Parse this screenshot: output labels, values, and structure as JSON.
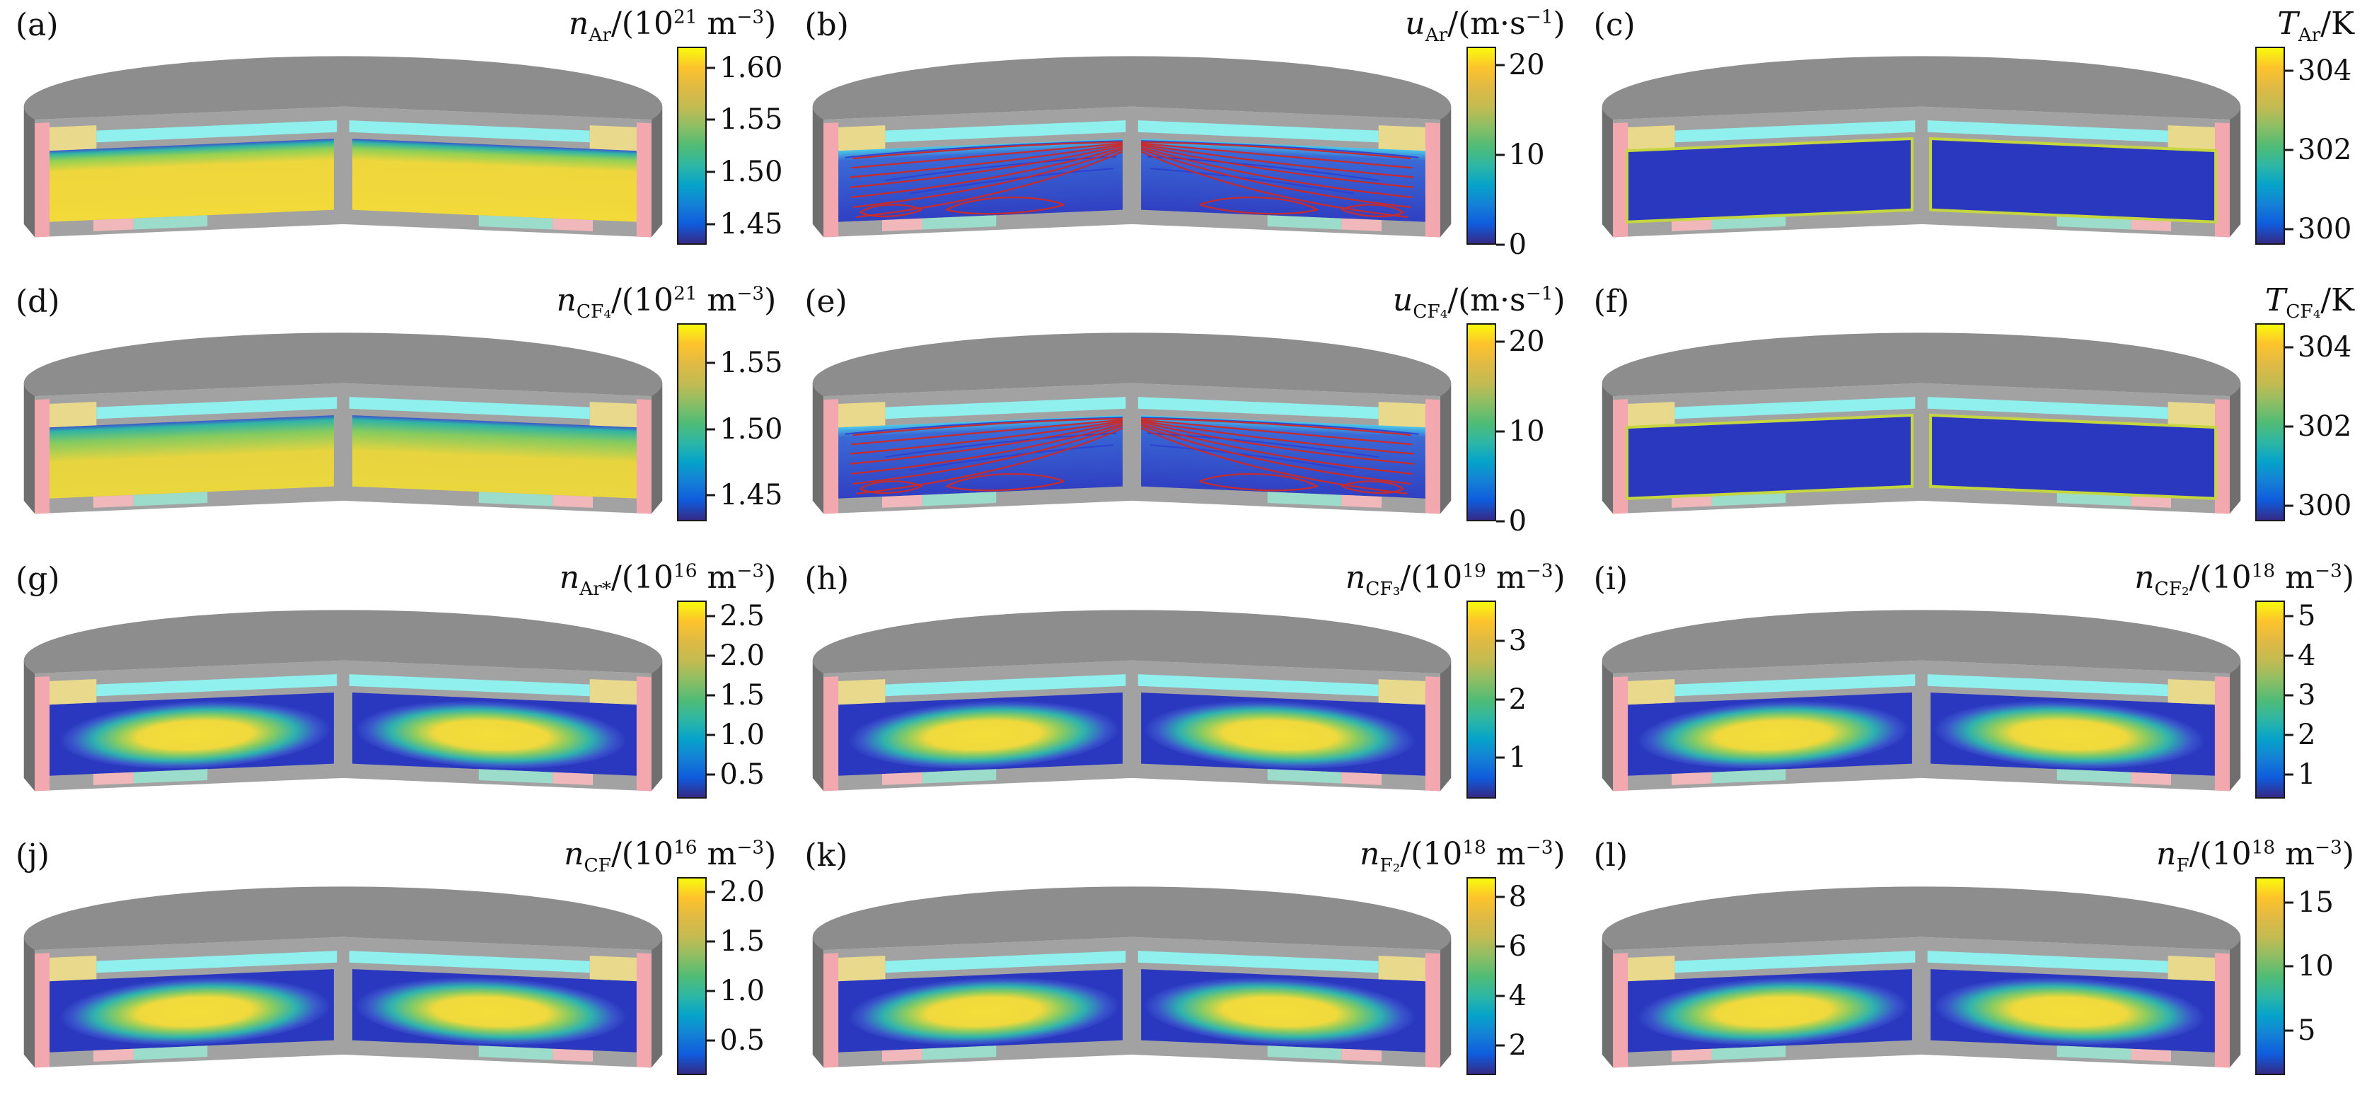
{
  "figure": {
    "background": "#ffffff",
    "colormap": [
      "#352a87",
      "#0f5cdd",
      "#1481d6",
      "#06a4ca",
      "#2eb7a4",
      "#51bc74",
      "#8dbe64",
      "#c4bb51",
      "#e0ba44",
      "#fdc32c",
      "#f8fa0d"
    ],
    "palette": {
      "chamber_gray": "#8d8d8d",
      "cut_face_gray": "#a2a2a2",
      "side_wall_gray": "#6f6f6f",
      "inlet_cyan": "#8ff0ee",
      "window_yellow": "#e9d98c",
      "wall_pink": "#f2a8ae",
      "stage_teal": "#9cdcca",
      "stage_pink": "#f0b8ba",
      "plasma_blue": "#2a38c0",
      "streamline_red": "#c92a2a",
      "streamline_blue": "#2b3fd0",
      "contour_yellow": "#c6d63e"
    },
    "panels": [
      {
        "id": "a",
        "label": "(a)",
        "face_style": "warm",
        "title_parts": [
          {
            "s": "i",
            "t": "n"
          },
          {
            "s": "sub",
            "t": "Ar"
          },
          {
            "s": "n",
            "t": "/(10"
          },
          {
            "s": "sup",
            "t": "21"
          },
          {
            "s": "n",
            "t": " m"
          },
          {
            "s": "sup",
            "t": "−3"
          },
          {
            "s": "n",
            "t": ")"
          }
        ],
        "colorbar": {
          "min": 1.43,
          "max": 1.62,
          "ticks": [
            {
              "v": 1.6,
              "t": "1.60"
            },
            {
              "v": 1.55,
              "t": "1.55"
            },
            {
              "v": 1.5,
              "t": "1.50"
            },
            {
              "v": 1.45,
              "t": "1.45"
            }
          ]
        }
      },
      {
        "id": "b",
        "label": "(b)",
        "face_style": "flow",
        "title_parts": [
          {
            "s": "i",
            "t": "u"
          },
          {
            "s": "sub",
            "t": "Ar"
          },
          {
            "s": "n",
            "t": "/(m·s"
          },
          {
            "s": "sup",
            "t": "−1"
          },
          {
            "s": "n",
            "t": ")"
          }
        ],
        "colorbar": {
          "min": 0,
          "max": 22,
          "ticks": [
            {
              "v": 20,
              "t": "20"
            },
            {
              "v": 10,
              "t": "10"
            },
            {
              "v": 0,
              "t": "0"
            }
          ]
        }
      },
      {
        "id": "c",
        "label": "(c)",
        "face_style": "cool",
        "title_parts": [
          {
            "s": "i",
            "t": "T"
          },
          {
            "s": "sub",
            "t": "Ar"
          },
          {
            "s": "n",
            "t": "/K"
          }
        ],
        "colorbar": {
          "min": 299.6,
          "max": 304.6,
          "ticks": [
            {
              "v": 304,
              "t": "304"
            },
            {
              "v": 302,
              "t": "302"
            },
            {
              "v": 300,
              "t": "300"
            }
          ]
        }
      },
      {
        "id": "d",
        "label": "(d)",
        "face_style": "warm2",
        "title_parts": [
          {
            "s": "i",
            "t": "n"
          },
          {
            "s": "sub",
            "t": "CF₄"
          },
          {
            "s": "n",
            "t": "/(10"
          },
          {
            "s": "sup",
            "t": "21"
          },
          {
            "s": "n",
            "t": " m"
          },
          {
            "s": "sup",
            "t": "−3"
          },
          {
            "s": "n",
            "t": ")"
          }
        ],
        "colorbar": {
          "min": 1.43,
          "max": 1.58,
          "ticks": [
            {
              "v": 1.55,
              "t": "1.55"
            },
            {
              "v": 1.5,
              "t": "1.50"
            },
            {
              "v": 1.45,
              "t": "1.45"
            }
          ]
        }
      },
      {
        "id": "e",
        "label": "(e)",
        "face_style": "flow",
        "title_parts": [
          {
            "s": "i",
            "t": "u"
          },
          {
            "s": "sub",
            "t": "CF₄"
          },
          {
            "s": "n",
            "t": "/(m·s"
          },
          {
            "s": "sup",
            "t": "−1"
          },
          {
            "s": "n",
            "t": ")"
          }
        ],
        "colorbar": {
          "min": 0,
          "max": 22,
          "ticks": [
            {
              "v": 20,
              "t": "20"
            },
            {
              "v": 10,
              "t": "10"
            },
            {
              "v": 0,
              "t": "0"
            }
          ]
        }
      },
      {
        "id": "f",
        "label": "(f)",
        "face_style": "cool",
        "title_parts": [
          {
            "s": "i",
            "t": "T"
          },
          {
            "s": "sub",
            "t": "CF₄"
          },
          {
            "s": "n",
            "t": "/K"
          }
        ],
        "colorbar": {
          "min": 299.6,
          "max": 304.6,
          "ticks": [
            {
              "v": 304,
              "t": "304"
            },
            {
              "v": 302,
              "t": "302"
            },
            {
              "v": 300,
              "t": "300"
            }
          ]
        }
      },
      {
        "id": "g",
        "label": "(g)",
        "face_style": "ring",
        "title_parts": [
          {
            "s": "i",
            "t": "n"
          },
          {
            "s": "sub",
            "t": "Ar*"
          },
          {
            "s": "n",
            "t": "/(10"
          },
          {
            "s": "sup",
            "t": "16"
          },
          {
            "s": "n",
            "t": " m"
          },
          {
            "s": "sup",
            "t": "−3"
          },
          {
            "s": "n",
            "t": ")"
          }
        ],
        "colorbar": {
          "min": 0.2,
          "max": 2.7,
          "ticks": [
            {
              "v": 2.5,
              "t": "2.5"
            },
            {
              "v": 2.0,
              "t": "2.0"
            },
            {
              "v": 1.5,
              "t": "1.5"
            },
            {
              "v": 1.0,
              "t": "1.0"
            },
            {
              "v": 0.5,
              "t": "0.5"
            }
          ]
        }
      },
      {
        "id": "h",
        "label": "(h)",
        "face_style": "ring",
        "title_parts": [
          {
            "s": "i",
            "t": "n"
          },
          {
            "s": "sub",
            "t": "CF₃"
          },
          {
            "s": "n",
            "t": "/(10"
          },
          {
            "s": "sup",
            "t": "19"
          },
          {
            "s": "n",
            "t": " m"
          },
          {
            "s": "sup",
            "t": "−3"
          },
          {
            "s": "n",
            "t": ")"
          }
        ],
        "colorbar": {
          "min": 0.3,
          "max": 3.7,
          "ticks": [
            {
              "v": 3,
              "t": "3"
            },
            {
              "v": 2,
              "t": "2"
            },
            {
              "v": 1,
              "t": "1"
            }
          ]
        }
      },
      {
        "id": "i",
        "label": "(i)",
        "face_style": "ring",
        "title_parts": [
          {
            "s": "i",
            "t": "n"
          },
          {
            "s": "sub",
            "t": "CF₂"
          },
          {
            "s": "n",
            "t": "/(10"
          },
          {
            "s": "sup",
            "t": "18"
          },
          {
            "s": "n",
            "t": " m"
          },
          {
            "s": "sup",
            "t": "−3"
          },
          {
            "s": "n",
            "t": ")"
          }
        ],
        "colorbar": {
          "min": 0.4,
          "max": 5.4,
          "ticks": [
            {
              "v": 5,
              "t": "5"
            },
            {
              "v": 4,
              "t": "4"
            },
            {
              "v": 3,
              "t": "3"
            },
            {
              "v": 2,
              "t": "2"
            },
            {
              "v": 1,
              "t": "1"
            }
          ]
        }
      },
      {
        "id": "j",
        "label": "(j)",
        "face_style": "ring",
        "title_parts": [
          {
            "s": "i",
            "t": "n"
          },
          {
            "s": "sub",
            "t": "CF"
          },
          {
            "s": "n",
            "t": "/(10"
          },
          {
            "s": "sup",
            "t": "16"
          },
          {
            "s": "n",
            "t": " m"
          },
          {
            "s": "sup",
            "t": "−3"
          },
          {
            "s": "n",
            "t": ")"
          }
        ],
        "colorbar": {
          "min": 0.15,
          "max": 2.15,
          "ticks": [
            {
              "v": 2.0,
              "t": "2.0"
            },
            {
              "v": 1.5,
              "t": "1.5"
            },
            {
              "v": 1.0,
              "t": "1.0"
            },
            {
              "v": 0.5,
              "t": "0.5"
            }
          ]
        }
      },
      {
        "id": "k",
        "label": "(k)",
        "face_style": "ring",
        "title_parts": [
          {
            "s": "i",
            "t": "n"
          },
          {
            "s": "sub",
            "t": "F₂"
          },
          {
            "s": "n",
            "t": "/(10"
          },
          {
            "s": "sup",
            "t": "18"
          },
          {
            "s": "n",
            "t": " m"
          },
          {
            "s": "sup",
            "t": "−3"
          },
          {
            "s": "n",
            "t": ")"
          }
        ],
        "colorbar": {
          "min": 0.8,
          "max": 8.8,
          "ticks": [
            {
              "v": 8,
              "t": "8"
            },
            {
              "v": 6,
              "t": "6"
            },
            {
              "v": 4,
              "t": "4"
            },
            {
              "v": 2,
              "t": "2"
            }
          ]
        }
      },
      {
        "id": "l",
        "label": "(l)",
        "face_style": "ring",
        "title_parts": [
          {
            "s": "i",
            "t": "n"
          },
          {
            "s": "sub",
            "t": "F"
          },
          {
            "s": "n",
            "t": "/(10"
          },
          {
            "s": "sup",
            "t": "18"
          },
          {
            "s": "n",
            "t": " m"
          },
          {
            "s": "sup",
            "t": "−3"
          },
          {
            "s": "n",
            "t": ")"
          }
        ],
        "colorbar": {
          "min": 1.5,
          "max": 17,
          "ticks": [
            {
              "v": 15,
              "t": "15"
            },
            {
              "v": 10,
              "t": "10"
            },
            {
              "v": 5,
              "t": "5"
            }
          ]
        }
      }
    ]
  },
  "chart_data": [
    {
      "panel": "(a)",
      "type": "heatmap",
      "title": "n_Ar/(10^21 m^-3)",
      "symbol": "n_Ar",
      "unit": "10^21 m^-3",
      "colormap": "parula",
      "colorbar_ticks": [
        1.45,
        1.5,
        1.55,
        1.6
      ],
      "colorbar_range": [
        1.43,
        1.62
      ],
      "pattern": "density nearly uniform high (~1.55-1.62, yellow) in bulk; lower (~1.45-1.50, green/blue) in thin layer below top inlet"
    },
    {
      "panel": "(b)",
      "type": "heatmap",
      "title": "u_Ar/(m·s^-1)",
      "symbol": "u_Ar",
      "unit": "m/s",
      "colormap": "parula",
      "colorbar_ticks": [
        0,
        10,
        20
      ],
      "colorbar_range": [
        0,
        22
      ],
      "pattern": "speed low (<5, blue) in bulk, higher (cyan) near top inlet; red and blue streamlines fan from top center outward with recirculation loops near bottom"
    },
    {
      "panel": "(c)",
      "type": "heatmap",
      "title": "T_Ar/K",
      "symbol": "T_Ar",
      "unit": "K",
      "colormap": "parula",
      "colorbar_ticks": [
        300,
        302,
        304
      ],
      "colorbar_range": [
        299.6,
        304.6
      ],
      "pattern": "gas ~300 K (dark blue) in core with ~304 K (yellow) thin boundary layers along walls"
    },
    {
      "panel": "(d)",
      "type": "heatmap",
      "title": "n_CF4/(10^21 m^-3)",
      "symbol": "n_CF4",
      "unit": "10^21 m^-3",
      "colormap": "parula",
      "colorbar_ticks": [
        1.45,
        1.5,
        1.55
      ],
      "colorbar_range": [
        1.43,
        1.58
      ],
      "pattern": "CF4 density ~1.55 (yellow) in bulk, decreasing (green) toward the top inlet region and edges"
    },
    {
      "panel": "(e)",
      "type": "heatmap",
      "title": "u_CF4/(m·s^-1)",
      "symbol": "u_CF4",
      "unit": "m/s",
      "colormap": "parula",
      "colorbar_ticks": [
        0,
        10,
        20
      ],
      "colorbar_range": [
        0,
        22
      ],
      "pattern": "same flow structure as panel (b): slow blue bulk with red/blue streamlines fanning from top center"
    },
    {
      "panel": "(f)",
      "type": "heatmap",
      "title": "T_CF4/K",
      "symbol": "T_CF4",
      "unit": "K",
      "colormap": "parula",
      "colorbar_ticks": [
        300,
        302,
        304
      ],
      "colorbar_range": [
        299.6,
        304.6
      ],
      "pattern": "~300 K core (dark blue) with ~304 K (yellow) wall boundary layers"
    },
    {
      "panel": "(g)",
      "type": "heatmap",
      "title": "n_Ar*/(10^16 m^-3)",
      "symbol": "n_Ar*",
      "unit": "10^16 m^-3",
      "colormap": "parula",
      "colorbar_ticks": [
        0.5,
        1.0,
        1.5,
        2.0,
        2.5
      ],
      "colorbar_range": [
        0.2,
        2.7
      ],
      "pattern": "toroidal band peaking ~2.5 (yellow) at mid-height mid-radius, decaying to <0.5 (blue) at walls"
    },
    {
      "panel": "(h)",
      "type": "heatmap",
      "title": "n_CF3/(10^19 m^-3)",
      "symbol": "n_CF3",
      "unit": "10^19 m^-3",
      "colormap": "parula",
      "colorbar_ticks": [
        1,
        2,
        3
      ],
      "colorbar_range": [
        0.3,
        3.7
      ],
      "pattern": "horizontal yellow band peaking ~3.5 at mid-height, blue near walls"
    },
    {
      "panel": "(i)",
      "type": "heatmap",
      "title": "n_CF2/(10^18 m^-3)",
      "symbol": "n_CF2",
      "unit": "10^18 m^-3",
      "colormap": "parula",
      "colorbar_ticks": [
        1,
        2,
        3,
        4,
        5
      ],
      "colorbar_range": [
        0.4,
        5.4
      ],
      "pattern": "yellow band peaking ~5 at mid-height, decreasing to ~1 (blue) at walls"
    },
    {
      "panel": "(j)",
      "type": "heatmap",
      "title": "n_CF/(10^16 m^-3)",
      "symbol": "n_CF",
      "unit": "10^16 m^-3",
      "colormap": "parula",
      "colorbar_ticks": [
        0.5,
        1.0,
        1.5,
        2.0
      ],
      "colorbar_range": [
        0.15,
        2.15
      ],
      "pattern": "yellow band peaking ~2 at mid-height, blue near walls"
    },
    {
      "panel": "(k)",
      "type": "heatmap",
      "title": "n_F2/(10^18 m^-3)",
      "symbol": "n_F2",
      "unit": "10^18 m^-3",
      "colormap": "parula",
      "colorbar_ticks": [
        2,
        4,
        6,
        8
      ],
      "colorbar_range": [
        0.8,
        8.8
      ],
      "pattern": "yellow band peaking ~8 at mid-height, blue near walls"
    },
    {
      "panel": "(l)",
      "type": "heatmap",
      "title": "n_F/(10^18 m^-3)",
      "symbol": "n_F",
      "unit": "10^18 m^-3",
      "colormap": "parula",
      "colorbar_ticks": [
        5,
        10,
        15
      ],
      "colorbar_range": [
        1.5,
        17
      ],
      "pattern": "yellow band peaking ~16 at mid-height, blue near walls"
    }
  ]
}
